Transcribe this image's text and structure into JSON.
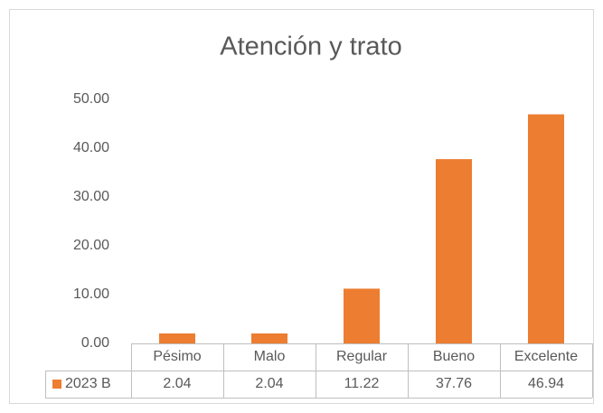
{
  "chart_data": {
    "type": "bar",
    "title": "Atención y trato",
    "categories": [
      "Pésimo",
      "Malo",
      "Regular",
      "Bueno",
      "Excelente"
    ],
    "series": [
      {
        "name": "2023 B",
        "color": "#ed7d31",
        "values": [
          2.04,
          2.04,
          11.22,
          37.76,
          46.94
        ]
      }
    ],
    "ylim": [
      0,
      50
    ],
    "yticks": [
      {
        "value": 0,
        "label": "0.00"
      },
      {
        "value": 10,
        "label": "10.00"
      },
      {
        "value": 20,
        "label": "20.00"
      },
      {
        "value": 30,
        "label": "30.00"
      },
      {
        "value": 40,
        "label": "40.00"
      },
      {
        "value": 50,
        "label": "50.00"
      }
    ],
    "grid": false,
    "data_table": true
  }
}
